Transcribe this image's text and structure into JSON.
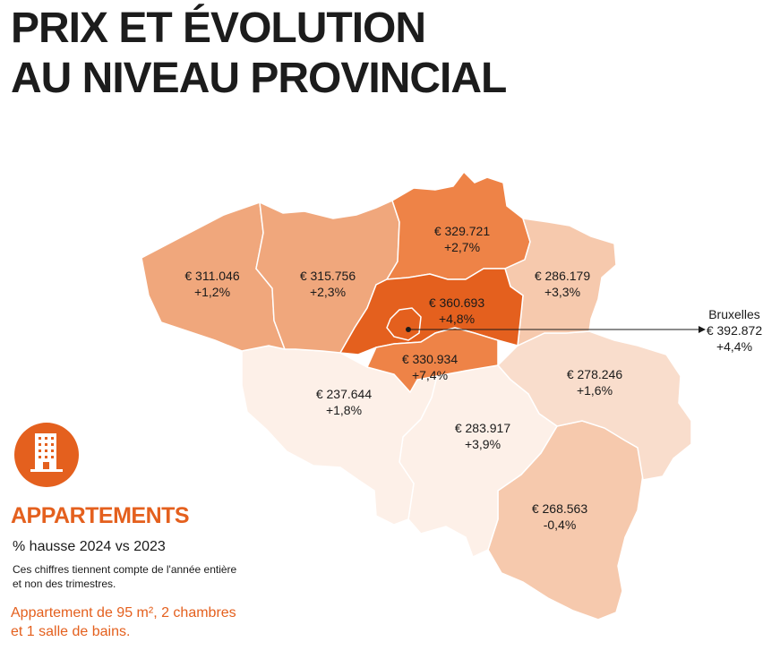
{
  "title": {
    "line1": "PRIX ET ÉVOLUTION",
    "line2": "AU NIVEAU PROVINCIAL"
  },
  "legend": {
    "icon": "apartment-building-icon",
    "heading": "APPARTEMENTS",
    "subtitle": "% hausse 2024 vs 2023",
    "note_line1": "Ces chiffres tiennent compte de l'année entière",
    "note_line2": "et non des trimestres.",
    "desc_line1": "Appartement de 95 m², 2 chambres",
    "desc_line2": "et 1 salle de bains."
  },
  "colors": {
    "accent": "#e4601e",
    "darkest": "#e4601e",
    "dark": "#ee8347",
    "medium": "#f0a77c",
    "light": "#f6c9ad",
    "lighter": "#f9ddcc",
    "lightest": "#fdf0e8"
  },
  "provinces": [
    {
      "price": "€ 311.046",
      "change": "+1,2%"
    },
    {
      "price": "€ 315.756",
      "change": "+2,3%"
    },
    {
      "price": "€ 329.721",
      "change": "+2,7%"
    },
    {
      "price": "€ 286.179",
      "change": "+3,3%"
    },
    {
      "price": "€ 360.693",
      "change": "+4,8%"
    },
    {
      "price": "€ 330.934",
      "change": "+7,4%"
    },
    {
      "price": "€ 237.644",
      "change": "+1,8%"
    },
    {
      "price": "€ 283.917",
      "change": "+3,9%"
    },
    {
      "price": "€ 278.246",
      "change": "+1,6%"
    },
    {
      "price": "€ 268.563",
      "change": "-0,4%"
    }
  ],
  "brussels": {
    "name": "Bruxelles",
    "price": "€ 392.872",
    "change": "+4,4%"
  }
}
